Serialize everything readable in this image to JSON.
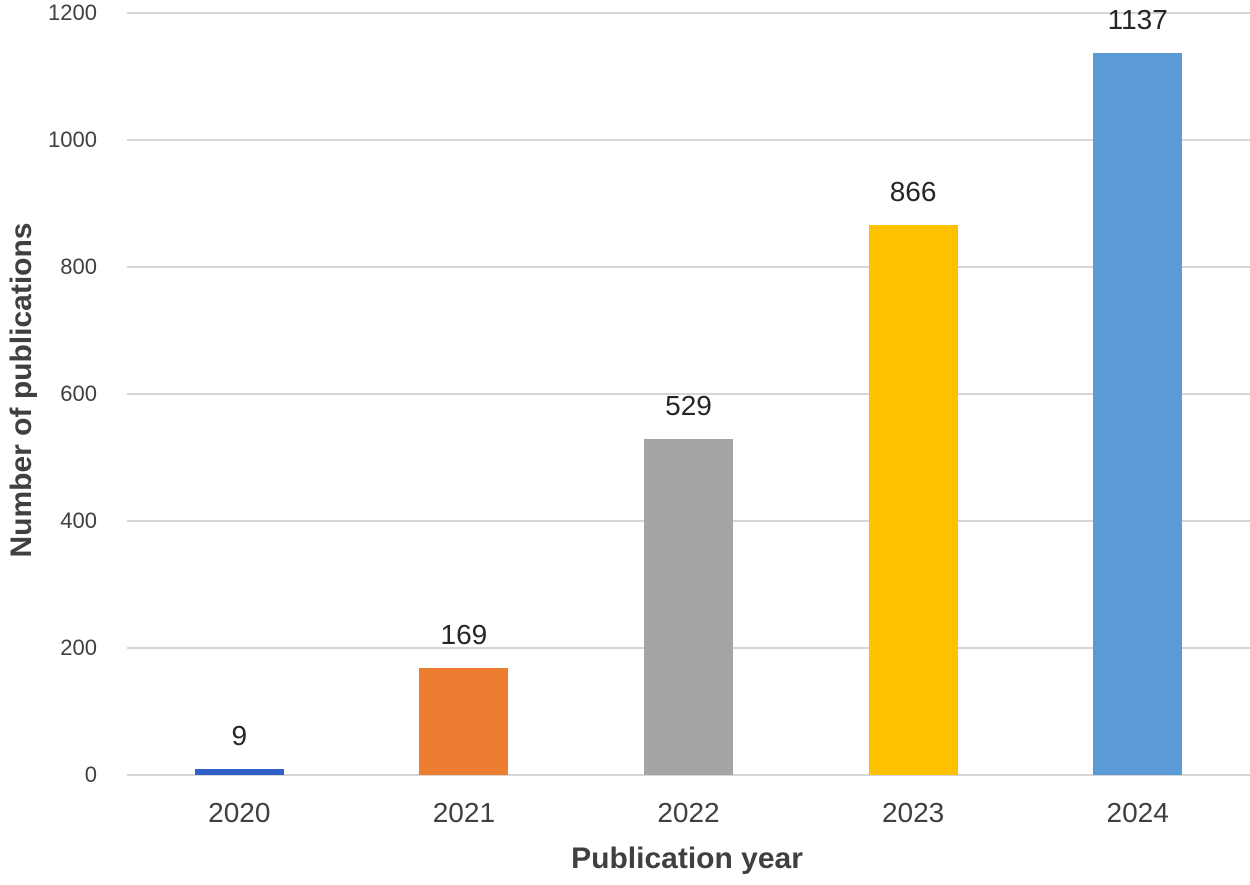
{
  "chart_data": {
    "type": "bar",
    "title": "",
    "categories": [
      "2020",
      "2021",
      "2022",
      "2023",
      "2024"
    ],
    "values": [
      9,
      169,
      529,
      866,
      1137
    ],
    "data_labels": [
      "9",
      "169",
      "529",
      "866",
      "1137"
    ],
    "bar_colors": [
      "#2F5FC7",
      "#ED7D31",
      "#A5A5A5",
      "#FFC000",
      "#5B9BD5"
    ],
    "xlabel": "Publication year",
    "ylabel": "Number of publications",
    "ylim": [
      0,
      1200
    ],
    "yticks": [
      0,
      200,
      400,
      600,
      800,
      1000,
      1200
    ],
    "grid": true,
    "legend": "none"
  },
  "style_colors": {
    "background": "#ffffff",
    "gridline": "#D6D6D6",
    "axis_line": "#D6D6D6",
    "tick_text": "#404040",
    "axis_title_text": "#404040",
    "data_label_text": "#262626"
  }
}
